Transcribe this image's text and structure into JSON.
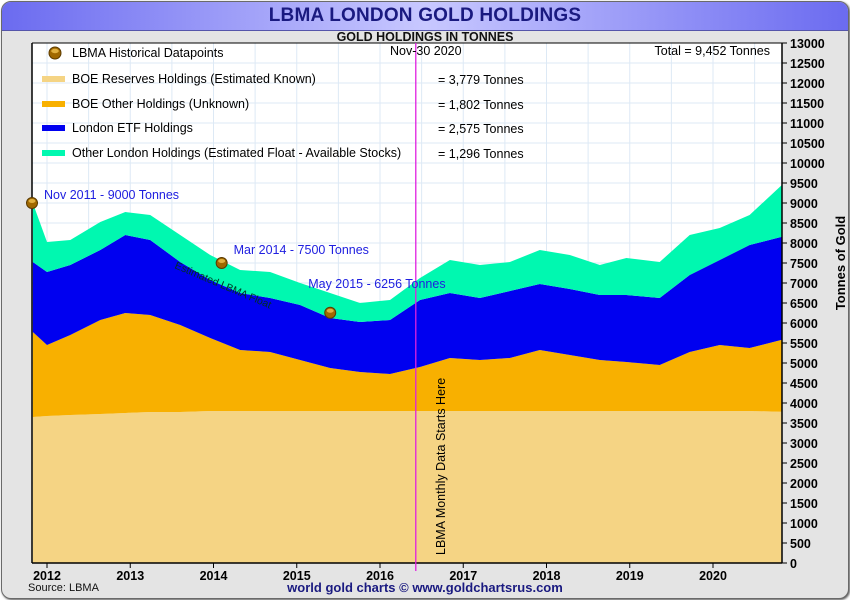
{
  "header": {
    "title": "LBMA LONDON GOLD HOLDINGS",
    "subtitle": "GOLD HOLDINGS IN TONNES"
  },
  "footer": {
    "source": "Source: LBMA",
    "credit": "world gold charts © www.goldchartsrus.com"
  },
  "colors": {
    "boe_reserves": "#f5d484",
    "boe_other": "#f8b000",
    "etf": "#0000f0",
    "float": "#00f8b0",
    "marker_line": "#e020e0",
    "annotation_text": "#2020e0",
    "datapoint": "#a06800"
  },
  "chart_data": {
    "type": "area",
    "stacked": true,
    "title": "LBMA LONDON GOLD HOLDINGS",
    "subtitle": "GOLD HOLDINGS IN TONNES",
    "xlabel": "",
    "ylabel": "Tonnes of Gold",
    "xlim": [
      2011.83,
      2020.92
    ],
    "ylim": [
      0,
      13000
    ],
    "y_ticks": [
      0,
      500,
      1000,
      1500,
      2000,
      2500,
      3000,
      3500,
      4000,
      4500,
      5000,
      5500,
      6000,
      6500,
      7000,
      7500,
      8000,
      8500,
      9000,
      9500,
      10000,
      10500,
      11000,
      11500,
      12000,
      12500,
      13000
    ],
    "x_ticks": [
      2012,
      2013,
      2014,
      2015,
      2016,
      2017,
      2018,
      2019,
      2020
    ],
    "grid": true,
    "legend_position": "top-left",
    "x": [
      2011.83,
      2012.0,
      2012.28,
      2012.64,
      2012.94,
      2013.24,
      2013.6,
      2013.96,
      2014.32,
      2014.68,
      2015.04,
      2015.4,
      2015.76,
      2016.12,
      2016.48,
      2016.84,
      2017.2,
      2017.56,
      2017.92,
      2018.28,
      2018.64,
      2018.96,
      2019.36,
      2019.72,
      2020.08,
      2020.44,
      2020.92
    ],
    "series": [
      {
        "name": "BOE Reserves Holdings (Estimated Known)",
        "key": "boe_reserves",
        "values": [
          3650,
          3675,
          3700,
          3725,
          3750,
          3775,
          3775,
          3800,
          3800,
          3800,
          3800,
          3800,
          3800,
          3800,
          3800,
          3800,
          3800,
          3800,
          3800,
          3800,
          3800,
          3800,
          3800,
          3800,
          3800,
          3800,
          3779
        ]
      },
      {
        "name": "BOE Other Holdings (Unknown)",
        "key": "boe_other",
        "values": [
          2125,
          1775,
          2000,
          2350,
          2500,
          2425,
          2175,
          1825,
          1525,
          1475,
          1275,
          1075,
          975,
          925,
          1100,
          1325,
          1275,
          1325,
          1525,
          1400,
          1275,
          1225,
          1150,
          1475,
          1650,
          1575,
          1802
        ]
      },
      {
        "name": "London ETF Holdings",
        "key": "etf",
        "values": [
          1750,
          1825,
          1750,
          1750,
          1950,
          1875,
          1575,
          1450,
          1425,
          1350,
          1375,
          1250,
          1250,
          1350,
          1675,
          1625,
          1550,
          1675,
          1650,
          1650,
          1625,
          1675,
          1675,
          1925,
          2125,
          2575,
          2575
        ]
      },
      {
        "name": "Other London Holdings (Estimated Float - Available Stocks)",
        "key": "float",
        "values": [
          1475,
          750,
          625,
          700,
          575,
          625,
          675,
          625,
          575,
          650,
          550,
          625,
          475,
          500,
          550,
          825,
          825,
          725,
          850,
          850,
          750,
          925,
          900,
          1000,
          800,
          750,
          1296
        ]
      }
    ],
    "legend": [
      {
        "label": "LBMA Historical Datapoints",
        "type": "marker",
        "value": ""
      },
      {
        "label": "BOE Reserves Holdings (Estimated Known)",
        "key": "boe_reserves",
        "value": "= 3,779 Tonnes"
      },
      {
        "label": "BOE Other Holdings (Unknown)",
        "key": "boe_other",
        "value": "= 1,802 Tonnes"
      },
      {
        "label": "London ETF Holdings",
        "key": "etf",
        "value": "= 2,575 Tonnes"
      },
      {
        "label": "Other London Holdings (Estimated Float - Available Stocks)",
        "key": "float",
        "value": "= 1,296 Tonnes"
      }
    ],
    "date_label": "Nov-30  2020",
    "total_label": "Total = 9,452 Tonnes",
    "datapoints": [
      {
        "x": 2011.83,
        "y": 9000,
        "label": "Nov 2011 - 9000 Tonnes"
      },
      {
        "x": 2014.17,
        "y": 7500,
        "label": "Mar 2014 - 7500 Tonnes"
      },
      {
        "x": 2015.33,
        "y": 6256,
        "label": "May 2015 - 6256 Tonnes"
      }
    ],
    "annotations": [
      {
        "text": "Estimated LBMA Float",
        "x": 2013.5,
        "y": 7400
      },
      {
        "text": "LBMA Monthly Data Starts Here",
        "x": 2016.55,
        "orientation": "vertical-line"
      }
    ]
  }
}
